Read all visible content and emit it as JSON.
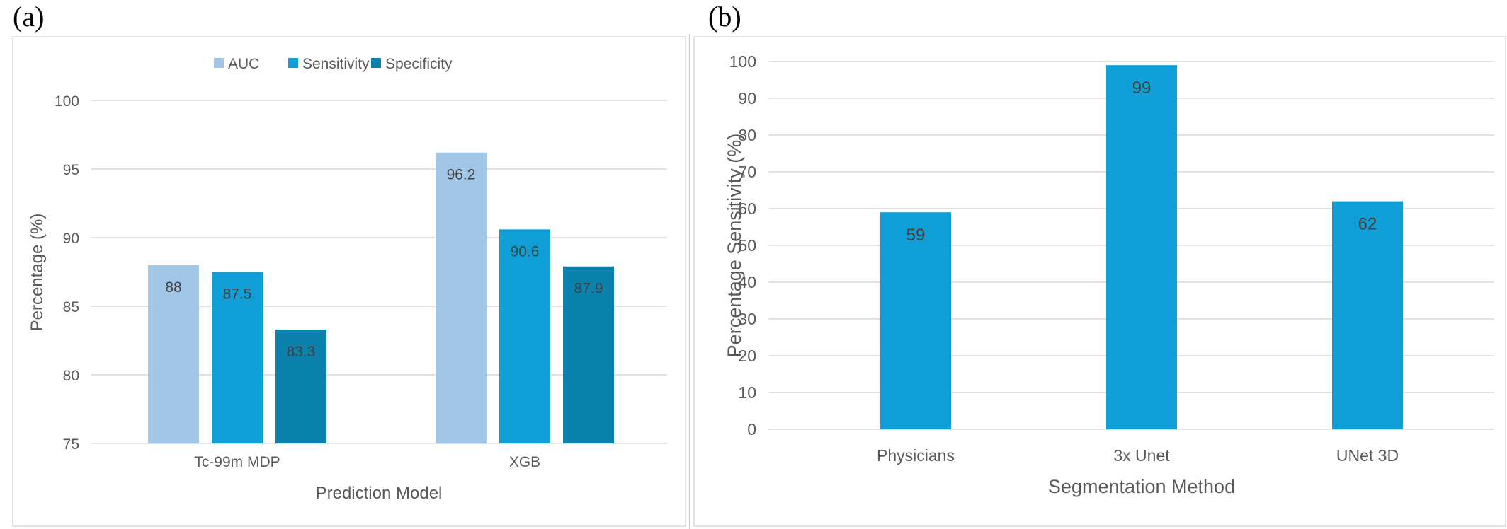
{
  "panels": {
    "a": "(a)",
    "b": "(b)"
  },
  "chart_data": [
    {
      "id": "a",
      "type": "bar",
      "categories": [
        "Tc-99m MDP",
        "XGB"
      ],
      "series": [
        {
          "name": "AUC",
          "color": "#A1C6E6",
          "values": [
            88,
            96.2
          ]
        },
        {
          "name": "Sensitivity",
          "color": "#0F9ED5",
          "values": [
            87.5,
            90.6
          ]
        },
        {
          "name": "Specificity",
          "color": "#0B81AE",
          "values": [
            83.3,
            87.9
          ]
        }
      ],
      "xlabel": "Prediction Model",
      "ylabel": "Percentage  (%)",
      "ylim": [
        75,
        100
      ],
      "yticks": [
        75,
        80,
        85,
        90,
        95,
        100
      ],
      "grid": true,
      "legend": "top-center"
    },
    {
      "id": "b",
      "type": "bar",
      "categories": [
        "Physicians",
        "3x Unet",
        "UNet 3D"
      ],
      "series": [
        {
          "color": "#0F9ED5",
          "values": [
            59,
            99,
            62
          ]
        }
      ],
      "xlabel": "Segmentation Method",
      "ylabel": "Percentage Sensitivity (%)",
      "ylim": [
        0,
        100
      ],
      "yticks": [
        0,
        10,
        20,
        30,
        40,
        50,
        60,
        70,
        80,
        90,
        100
      ],
      "grid": true,
      "legend": "none"
    }
  ]
}
